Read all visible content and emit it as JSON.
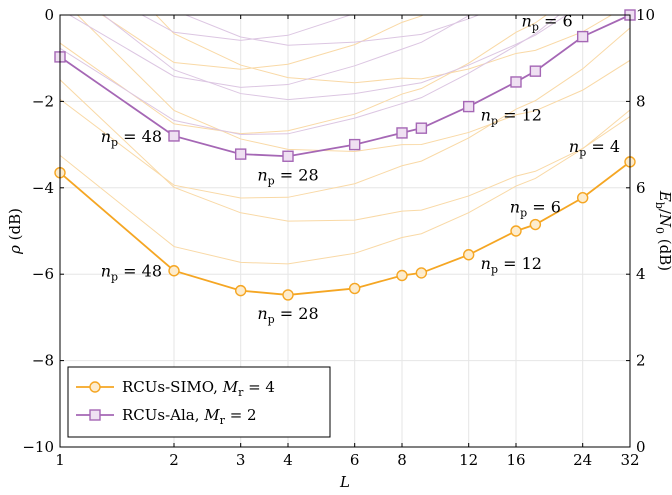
{
  "chart_data": {
    "type": "line",
    "xlabel": "L",
    "ylabel_left": "ρ (dB)",
    "ylabel_right": "Eb/N0 (dB)",
    "x_scale": "log2",
    "xlim": [
      1,
      32
    ],
    "ylim_left": [
      -10,
      0
    ],
    "ylim_right": [
      0,
      10
    ],
    "x_ticks": [
      1,
      2,
      3,
      4,
      6,
      8,
      12,
      16,
      24,
      32
    ],
    "y_ticks_left": [
      -10,
      -8,
      -6,
      -4,
      -2,
      0
    ],
    "y_ticks_right": [
      0,
      2,
      4,
      6,
      8,
      10
    ],
    "grid": true,
    "legend_position": "bottom-left",
    "series": [
      {
        "name": "RCUs-SIMO, M_r = 4",
        "legend_main": "RCUs-SIMO, ",
        "legend_var": "M",
        "legend_sub": "r",
        "legend_eq": " = 4",
        "color": "#f5a623",
        "marker": "circle",
        "x": [
          1,
          2,
          3,
          4,
          6,
          8,
          9,
          12,
          16,
          18,
          24,
          32
        ],
        "y": [
          -3.65,
          -5.92,
          -6.38,
          -6.48,
          -6.33,
          -6.03,
          -5.97,
          -5.55,
          -5.0,
          -4.85,
          -4.23,
          -3.4
        ]
      },
      {
        "name": "RCUs-Ala, M_r = 2",
        "legend_main": "RCUs-Ala, ",
        "legend_var": "M",
        "legend_sub": "r",
        "legend_eq": " = 2",
        "color": "#a567b5",
        "marker": "square",
        "x": [
          1,
          2,
          3,
          4,
          6,
          8,
          9,
          12,
          16,
          18,
          24,
          32
        ],
        "y": [
          -0.97,
          -2.8,
          -3.22,
          -3.27,
          -3.0,
          -2.73,
          -2.62,
          -2.12,
          -1.55,
          -1.3,
          -0.5,
          0.0
        ]
      }
    ],
    "annotations": [
      {
        "text": "n_p = 48",
        "main": "n",
        "sub": "p",
        "eq": " = 48",
        "x": 2,
        "y": -2.8,
        "anchor": "left"
      },
      {
        "text": "n_p = 28",
        "main": "n",
        "sub": "p",
        "eq": " = 28",
        "x": 4,
        "y": -3.27,
        "anchor": "below"
      },
      {
        "text": "n_p = 12",
        "main": "n",
        "sub": "p",
        "eq": " = 12",
        "x": 12,
        "y": -2.12,
        "anchor": "right"
      },
      {
        "text": "n_p = 6",
        "main": "n",
        "sub": "p",
        "eq": " = 6",
        "x": 24,
        "y": -0.5,
        "anchor": "above-left"
      },
      {
        "text": "n_p = 48",
        "main": "n",
        "sub": "p",
        "eq": " = 48",
        "x": 2,
        "y": -5.92,
        "anchor": "left"
      },
      {
        "text": "n_p = 28",
        "main": "n",
        "sub": "p",
        "eq": " = 28",
        "x": 4,
        "y": -6.48,
        "anchor": "below"
      },
      {
        "text": "n_p = 12",
        "main": "n",
        "sub": "p",
        "eq": " = 12",
        "x": 12,
        "y": -5.55,
        "anchor": "right"
      },
      {
        "text": "n_p = 6",
        "main": "n",
        "sub": "p",
        "eq": " = 6",
        "x": 18,
        "y": -4.85,
        "anchor": "above"
      },
      {
        "text": "n_p = 4",
        "main": "n",
        "sub": "p",
        "eq": " = 4",
        "x": 32,
        "y": -3.4,
        "anchor": "above-left"
      }
    ]
  }
}
